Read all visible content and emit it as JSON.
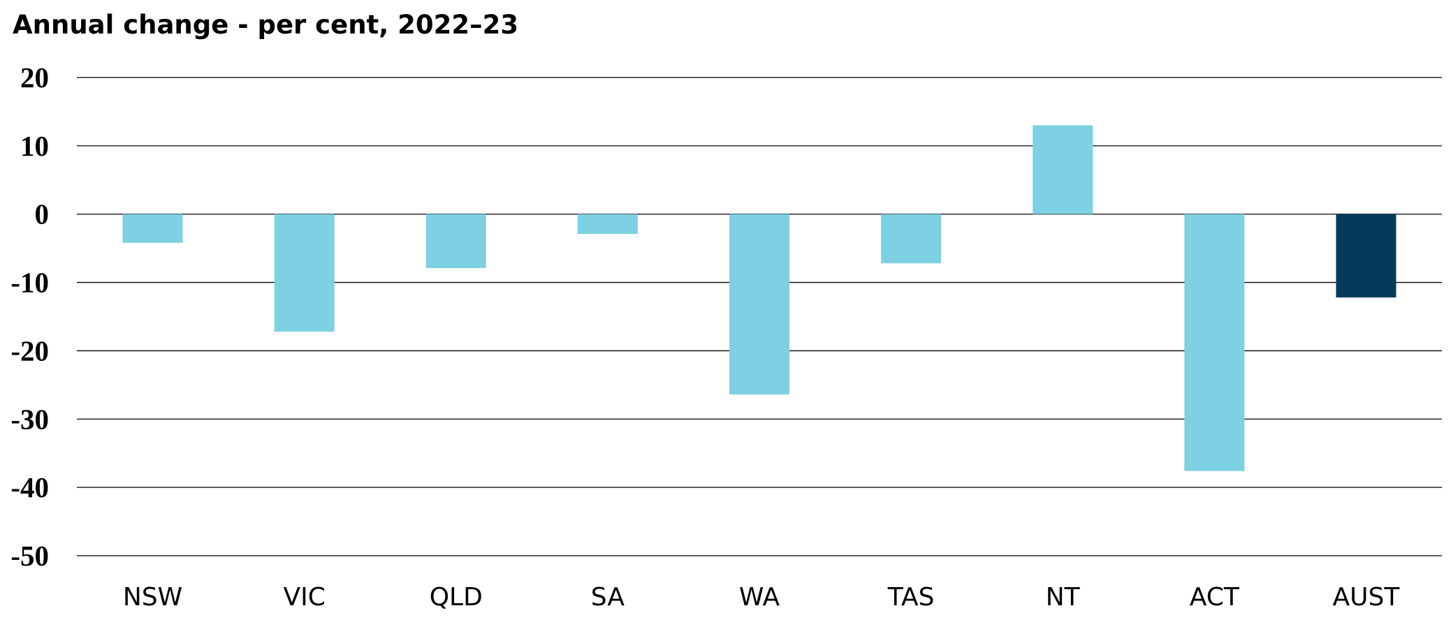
{
  "chart_data": {
    "type": "bar",
    "title": "Annual change - per cent, 2022–23",
    "xlabel": "",
    "ylabel": "",
    "categories": [
      "NSW",
      "VIC",
      "QLD",
      "SA",
      "WA",
      "TAS",
      "NT",
      "ACT",
      "AUST"
    ],
    "values": [
      -4.2,
      -17.2,
      -7.9,
      -2.9,
      -26.4,
      -7.2,
      13.0,
      -37.6,
      -12.2
    ],
    "ylim": [
      -50,
      20
    ],
    "yticks": [
      "20",
      "10",
      "0",
      "-10",
      "-20",
      "-30",
      "-40",
      "-50"
    ],
    "grid": true,
    "legend": "none",
    "colors": {
      "bar": "#7dd1e2",
      "highlight_bar": "#053b5a",
      "grid": "#000000"
    },
    "highlight_category": "AUST"
  }
}
